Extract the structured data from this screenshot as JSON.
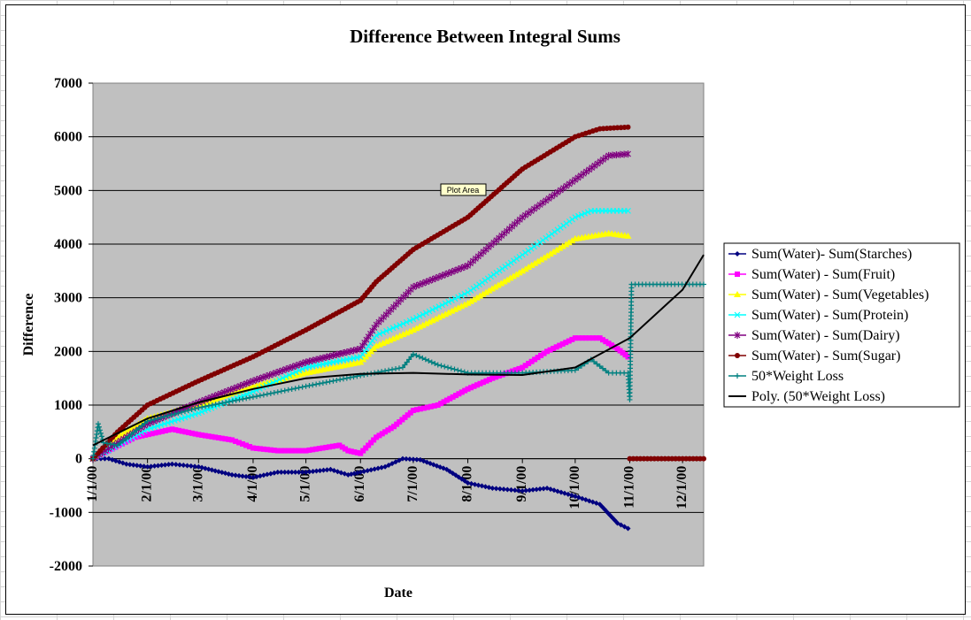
{
  "chart_data": {
    "type": "line",
    "title": "Difference Between Integral Sums",
    "xlabel": "Date",
    "ylabel": "Difference",
    "ylim": [
      -2000,
      7000
    ],
    "xlim": [
      "1/1/00",
      "12/13/00"
    ],
    "yticks": [
      7000,
      6000,
      5000,
      4000,
      3000,
      2000,
      1000,
      0,
      -1000,
      -2000
    ],
    "xticks": [
      "1/1/00",
      "2/1/00",
      "3/1/00",
      "4/1/00",
      "5/1/00",
      "6/1/00",
      "7/1/00",
      "8/1/00",
      "9/1/00",
      "10/1/00",
      "11/1/00",
      "12/1/00"
    ],
    "grid": "horizontal",
    "plot_background": "#c0c0c0",
    "legend_position": "right",
    "annotation": "Plot Area",
    "series": [
      {
        "name": "Sum(Water)- Sum(Starches)",
        "color": "#000080",
        "marker": "diamond",
        "points": [
          [
            "1/1/00",
            0
          ],
          [
            "1/10/00",
            0
          ],
          [
            "1/20/00",
            -100
          ],
          [
            "2/1/00",
            -150
          ],
          [
            "2/15/00",
            -100
          ],
          [
            "3/1/00",
            -150
          ],
          [
            "3/20/00",
            -300
          ],
          [
            "4/1/00",
            -350
          ],
          [
            "4/15/00",
            -250
          ],
          [
            "5/1/00",
            -250
          ],
          [
            "5/15/00",
            -200
          ],
          [
            "5/25/00",
            -300
          ],
          [
            "6/1/00",
            -250
          ],
          [
            "6/15/00",
            -150
          ],
          [
            "6/25/00",
            0
          ],
          [
            "7/5/00",
            -20
          ],
          [
            "7/20/00",
            -200
          ],
          [
            "8/1/00",
            -450
          ],
          [
            "8/15/00",
            -550
          ],
          [
            "9/1/00",
            -600
          ],
          [
            "9/15/00",
            -550
          ],
          [
            "10/1/00",
            -700
          ],
          [
            "10/15/00",
            -850
          ],
          [
            "10/25/00",
            -1200
          ],
          [
            "10/31/00",
            -1300
          ]
        ]
      },
      {
        "name": "Sum(Water) - Sum(Fruit)",
        "color": "#ff00ff",
        "marker": "square",
        "points": [
          [
            "1/1/00",
            0
          ],
          [
            "1/10/00",
            150
          ],
          [
            "1/25/00",
            400
          ],
          [
            "2/15/00",
            550
          ],
          [
            "3/1/00",
            450
          ],
          [
            "3/20/00",
            350
          ],
          [
            "4/1/00",
            200
          ],
          [
            "4/15/00",
            150
          ],
          [
            "5/1/00",
            150
          ],
          [
            "5/20/00",
            250
          ],
          [
            "5/25/00",
            150
          ],
          [
            "6/1/00",
            100
          ],
          [
            "6/10/00",
            400
          ],
          [
            "6/20/00",
            600
          ],
          [
            "7/1/00",
            900
          ],
          [
            "7/15/00",
            1000
          ],
          [
            "8/1/00",
            1300
          ],
          [
            "8/15/00",
            1500
          ],
          [
            "9/1/00",
            1700
          ],
          [
            "9/15/00",
            2000
          ],
          [
            "10/1/00",
            2250
          ],
          [
            "10/15/00",
            2250
          ],
          [
            "10/25/00",
            2050
          ],
          [
            "10/31/00",
            1900
          ]
        ]
      },
      {
        "name": "Sum(Water) - Sum(Vegetables)",
        "color": "#ffff00",
        "marker": "triangle",
        "points": [
          [
            "1/1/00",
            0
          ],
          [
            "1/15/00",
            400
          ],
          [
            "2/1/00",
            750
          ],
          [
            "3/1/00",
            1000
          ],
          [
            "4/1/00",
            1350
          ],
          [
            "5/1/00",
            1600
          ],
          [
            "6/1/00",
            1800
          ],
          [
            "6/10/00",
            2100
          ],
          [
            "7/1/00",
            2400
          ],
          [
            "8/1/00",
            2900
          ],
          [
            "9/1/00",
            3500
          ],
          [
            "10/1/00",
            4100
          ],
          [
            "10/20/00",
            4200
          ],
          [
            "10/31/00",
            4150
          ]
        ]
      },
      {
        "name": "Sum(Water) - Sum(Protein)",
        "color": "#00ffff",
        "marker": "x",
        "points": [
          [
            "1/1/00",
            0
          ],
          [
            "1/15/00",
            250
          ],
          [
            "2/1/00",
            550
          ],
          [
            "3/1/00",
            850
          ],
          [
            "4/1/00",
            1250
          ],
          [
            "5/1/00",
            1700
          ],
          [
            "6/1/00",
            1900
          ],
          [
            "6/10/00",
            2300
          ],
          [
            "7/1/00",
            2600
          ],
          [
            "8/1/00",
            3100
          ],
          [
            "9/1/00",
            3800
          ],
          [
            "10/1/00",
            4500
          ],
          [
            "10/10/00",
            4620
          ],
          [
            "10/31/00",
            4620
          ]
        ]
      },
      {
        "name": "Sum(Water) - Sum(Dairy)",
        "color": "#800080",
        "marker": "star",
        "points": [
          [
            "1/1/00",
            0
          ],
          [
            "1/15/00",
            300
          ],
          [
            "2/1/00",
            650
          ],
          [
            "3/1/00",
            1050
          ],
          [
            "4/1/00",
            1450
          ],
          [
            "5/1/00",
            1800
          ],
          [
            "6/1/00",
            2050
          ],
          [
            "6/10/00",
            2500
          ],
          [
            "7/1/00",
            3200
          ],
          [
            "8/1/00",
            3600
          ],
          [
            "9/1/00",
            4500
          ],
          [
            "10/1/00",
            5200
          ],
          [
            "10/20/00",
            5650
          ],
          [
            "10/31/00",
            5680
          ]
        ]
      },
      {
        "name": "Sum(Water) - Sum(Sugar)",
        "color": "#800000",
        "marker": "circle",
        "points": [
          [
            "1/1/00",
            0
          ],
          [
            "1/15/00",
            500
          ],
          [
            "2/1/00",
            1000
          ],
          [
            "3/1/00",
            1450
          ],
          [
            "4/1/00",
            1900
          ],
          [
            "5/1/00",
            2400
          ],
          [
            "6/1/00",
            2950
          ],
          [
            "6/10/00",
            3300
          ],
          [
            "7/1/00",
            3900
          ],
          [
            "8/1/00",
            4500
          ],
          [
            "9/1/00",
            5400
          ],
          [
            "10/1/00",
            6000
          ],
          [
            "10/15/00",
            6150
          ],
          [
            "10/31/00",
            6180
          ]
        ]
      },
      {
        "name": "50*Weight Loss",
        "color": "#008080",
        "marker": "plus",
        "points": [
          [
            "1/1/00",
            0
          ],
          [
            "1/4/00",
            650
          ],
          [
            "1/7/00",
            300
          ],
          [
            "1/15/00",
            250
          ],
          [
            "2/1/00",
            700
          ],
          [
            "3/1/00",
            950
          ],
          [
            "4/1/00",
            1150
          ],
          [
            "5/1/00",
            1350
          ],
          [
            "6/1/00",
            1550
          ],
          [
            "6/25/00",
            1700
          ],
          [
            "7/1/00",
            1950
          ],
          [
            "7/15/00",
            1750
          ],
          [
            "8/1/00",
            1600
          ],
          [
            "9/1/00",
            1600
          ],
          [
            "10/1/00",
            1650
          ],
          [
            "10/10/00",
            1850
          ],
          [
            "10/20/00",
            1600
          ],
          [
            "10/31/00",
            1600
          ],
          [
            "11/1/00",
            1100
          ],
          [
            "11/2/00",
            3250
          ],
          [
            "12/13/00",
            3250
          ]
        ]
      },
      {
        "name": "Poly. (50*Weight Loss)",
        "color": "#000000",
        "marker": "none",
        "points": [
          [
            "1/1/00",
            250
          ],
          [
            "2/1/00",
            750
          ],
          [
            "3/1/00",
            1050
          ],
          [
            "4/1/00",
            1300
          ],
          [
            "5/1/00",
            1500
          ],
          [
            "6/1/00",
            1580
          ],
          [
            "7/1/00",
            1600
          ],
          [
            "8/1/00",
            1570
          ],
          [
            "9/1/00",
            1560
          ],
          [
            "10/1/00",
            1700
          ],
          [
            "11/1/00",
            2250
          ],
          [
            "12/1/00",
            3150
          ],
          [
            "12/13/00",
            3800
          ]
        ]
      },
      {
        "name": "",
        "color": "#800000",
        "marker": "circle",
        "points": [
          [
            "11/1/00",
            0
          ],
          [
            "12/13/00",
            0
          ]
        ]
      }
    ]
  }
}
